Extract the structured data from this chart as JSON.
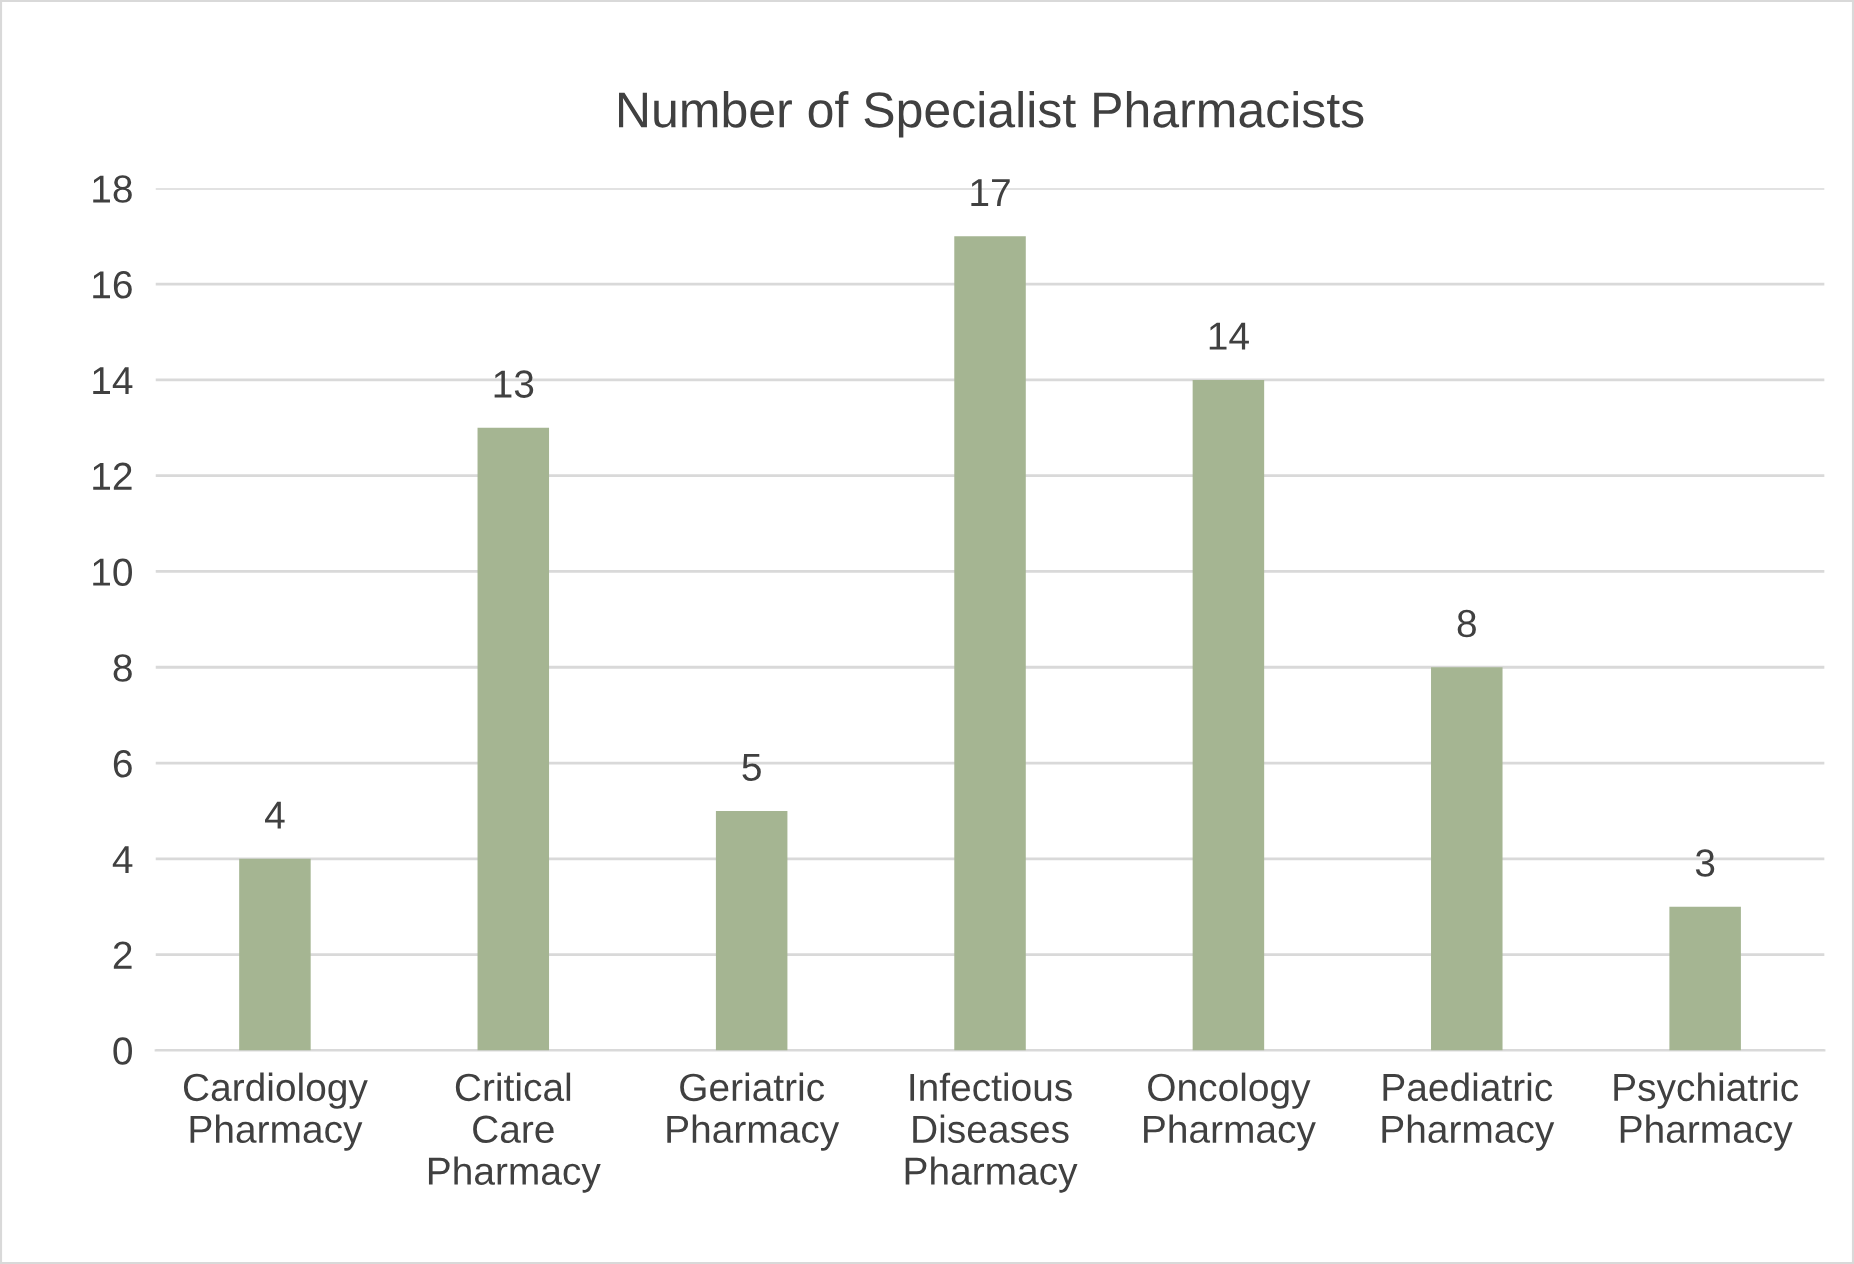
{
  "chart_data": {
    "type": "bar",
    "title": "Number of Specialist Pharmacists",
    "categories": [
      "Cardiology\nPharmacy",
      "Critical\nCare\nPharmacy",
      "Geriatric\nPharmacy",
      "Infectious\nDiseases\nPharmacy",
      "Oncology\nPharmacy",
      "Paediatric\nPharmacy",
      "Psychiatric\nPharmacy"
    ],
    "values": [
      4,
      13,
      5,
      17,
      14,
      8,
      3
    ],
    "color": "#a5b592",
    "ylim": [
      0,
      18
    ],
    "yticks": [
      0,
      2,
      4,
      6,
      8,
      10,
      12,
      14,
      16,
      18
    ],
    "grid": "y",
    "data_labels": true,
    "legend": false
  }
}
